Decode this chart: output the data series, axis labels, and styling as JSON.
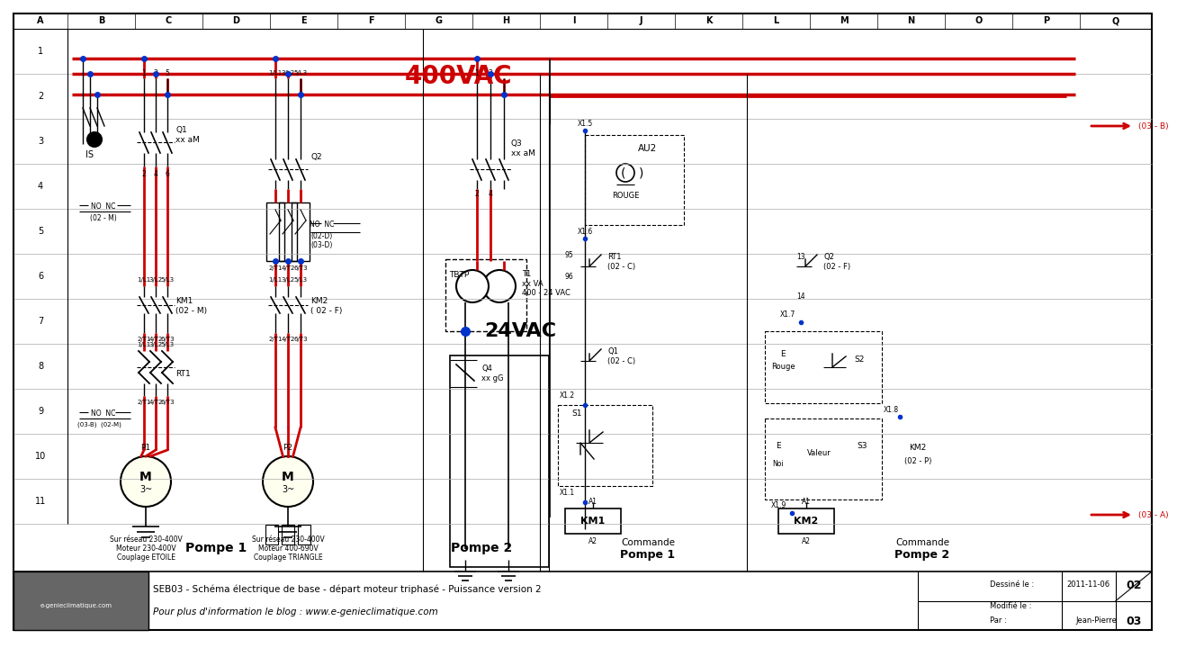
{
  "bg_color": "#ffffff",
  "R": "#cc0000",
  "BK": "#000000",
  "BL": "#0033cc",
  "voltage_400": "400VAC",
  "voltage_24": "24VAC",
  "footer_left": "SEB03 - Schéma électrique de base - départ moteur triphasé - Puissance version 2",
  "footer_blog": "Pour plus d'information le blog : www.e-genieclimatique.com",
  "footer_date": "2011-11-06",
  "footer_by": "Jean-Pierre",
  "footer_rev1": "02",
  "footer_rev2": "03",
  "footer_dessine": "Dessiné le :",
  "footer_modifie": "Modifié le :",
  "footer_par": "Par :",
  "col_labels": [
    "A",
    "B",
    "C",
    "D",
    "E",
    "F",
    "G",
    "H",
    "I",
    "J",
    "K",
    "L",
    "M",
    "N",
    "O",
    "P",
    "Q"
  ],
  "row_labels": [
    "1",
    "2",
    "3",
    "4",
    "5",
    "6",
    "7",
    "8",
    "9",
    "10",
    "11"
  ],
  "label_is": "IS",
  "label_q1": "Q1\nxx aM",
  "label_q2": "Q2",
  "label_q3": "Q3\nxx aM",
  "label_q4": "Q4\nxx gG",
  "label_km1": "KM1\n(02 - M)",
  "label_km2_p": "KM2\n(02 - P)",
  "label_km2_f": "KM2\n( 02 - F)",
  "label_rt1": "RT1",
  "label_tbtp": "TBTP",
  "label_t1": "T1\nxx VA\n400 - 24 VAC",
  "label_au2": "AU2",
  "label_rouge": "ROUGE",
  "label_rt1c": "RT1\n(02 - C)",
  "label_q2f": "Q2\n(02 - F)",
  "label_q1c": "Q1\n(02 - C)",
  "label_s1": "S1",
  "label_s2": "S2",
  "label_s3": "S3",
  "label_e_rouge": "E\nRouge",
  "label_e_noi": "E\nNoi",
  "label_valeur": "Valeur",
  "label_km2_right": "KM2\n(02 - P)",
  "label_km1_coil": "KM1",
  "label_km2_coil": "KM2",
  "label_pompe1": "Pompe 1",
  "label_pompe2": "Pompe 2",
  "label_commande": "Commande",
  "motor1_info1": "Sur réseau 230-400V",
  "motor1_info2": "Moteur 230-400V",
  "motor1_info3": "Couplage ETOILE",
  "motor2_info1": "Sur réseau 230-400V",
  "motor2_info2": "Moteur 400-690V",
  "motor2_info3": "Couplage TRIANGLE",
  "no_nc_q1": "NO  NC\n(02 - M)",
  "no_nc_q2": "NO  NC\n(02-D)\n(03-D)",
  "no_nc_rt1": "NO  NC\n(03-B)  (02-M)",
  "label_x15a": "X1.5",
  "label_x16": "X1.6",
  "label_x17": "X1.7",
  "label_x12": "X1.2",
  "label_x11": "X1.1",
  "label_x19": "X1.9",
  "label_x18": "X1.8",
  "label_03b": "(03 - B)",
  "label_03a": "(03 - A)"
}
